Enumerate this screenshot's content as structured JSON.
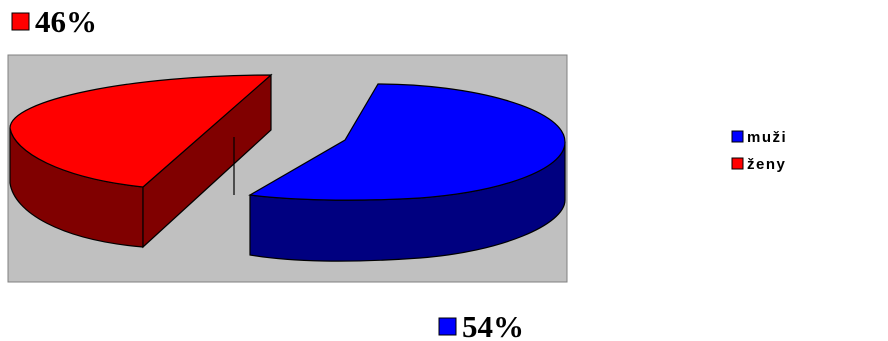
{
  "chart_data": {
    "type": "pie",
    "style": "3d-exploded",
    "slices": [
      {
        "name": "muži",
        "value": 54,
        "label": "54%",
        "color": "#0000ff",
        "side_color": "#000080"
      },
      {
        "name": "ženy",
        "value": 46,
        "label": "46%",
        "color": "#ff0000",
        "side_color": "#800000"
      }
    ],
    "legend": {
      "placement": "right",
      "items": [
        "muži",
        "ženy"
      ]
    },
    "plot_background": "#c0c0c0"
  }
}
